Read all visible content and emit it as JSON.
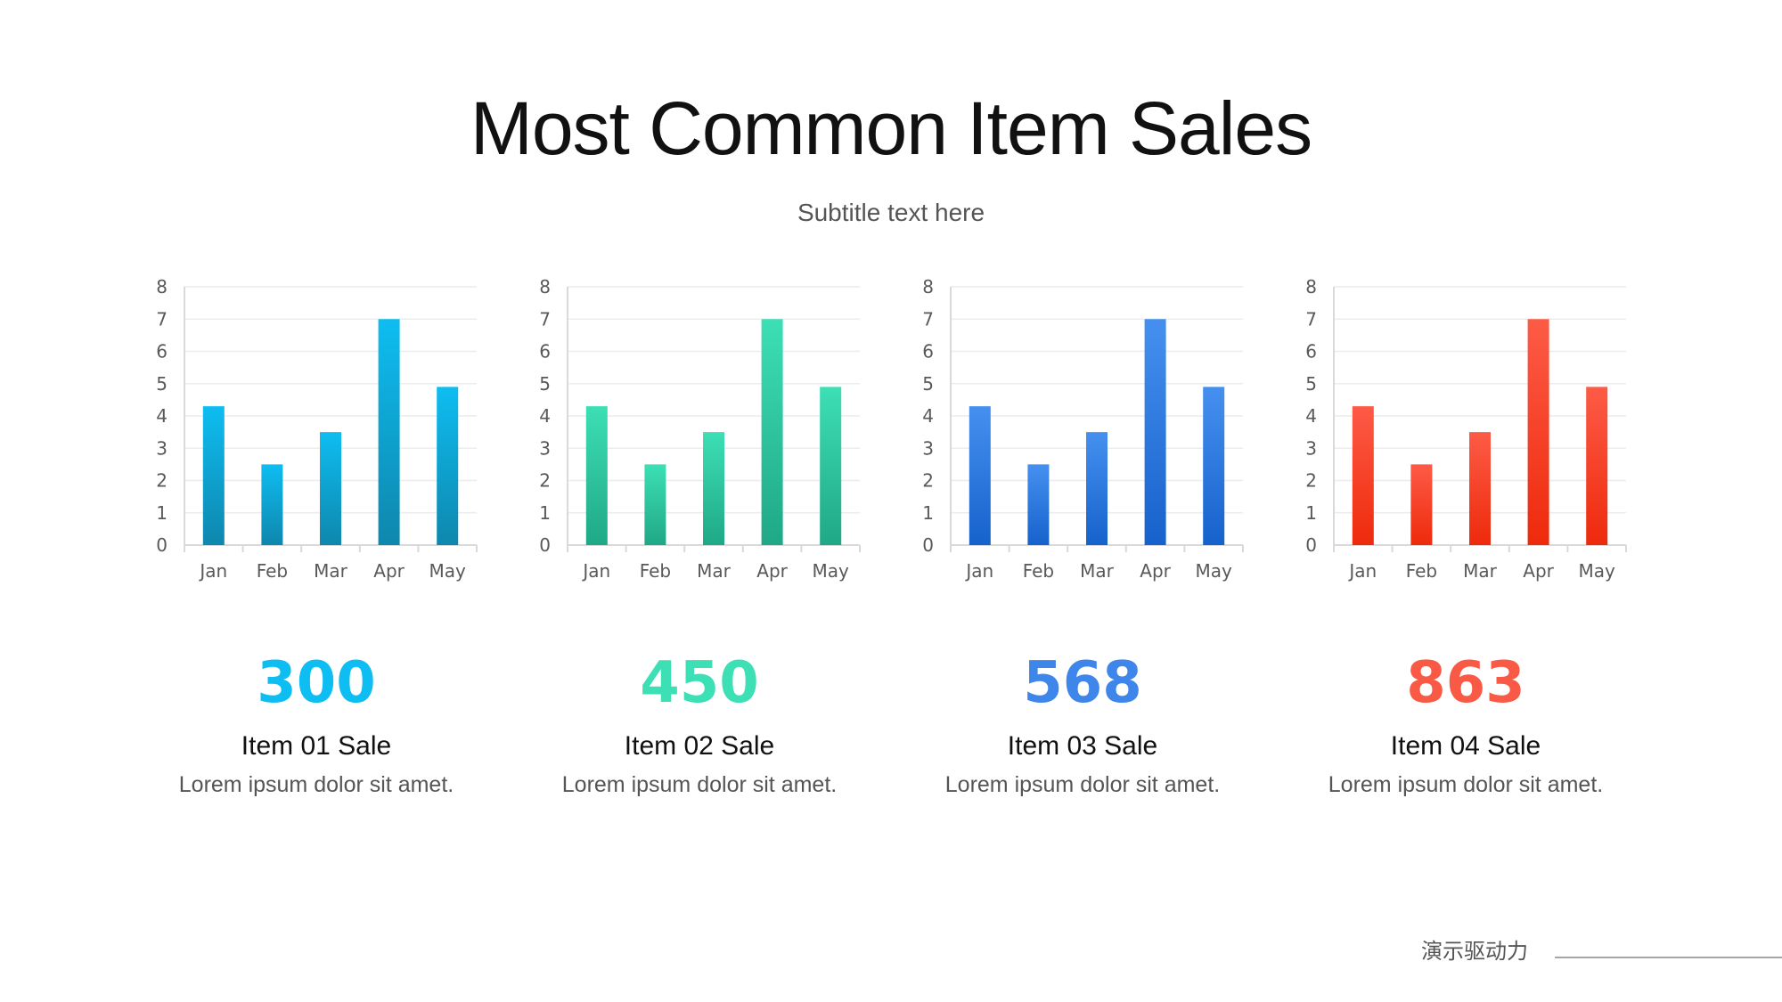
{
  "header": {
    "title": "Most Common Item Sales",
    "subtitle": "Subtitle text here"
  },
  "chart_data": [
    {
      "type": "bar",
      "categories": [
        "Jan",
        "Feb",
        "Mar",
        "Apr",
        "May"
      ],
      "values": [
        4.3,
        2.5,
        3.5,
        7.0,
        4.9
      ],
      "ylim": [
        0,
        8
      ],
      "yticks": [
        "0",
        "1",
        "2",
        "3",
        "4",
        "5",
        "6",
        "7",
        "8"
      ],
      "grid": true,
      "color_top": "#0ebdf1",
      "color_bottom": "#0e87ad"
    },
    {
      "type": "bar",
      "categories": [
        "Jan",
        "Feb",
        "Mar",
        "Apr",
        "May"
      ],
      "values": [
        4.3,
        2.5,
        3.5,
        7.0,
        4.9
      ],
      "ylim": [
        0,
        8
      ],
      "yticks": [
        "0",
        "1",
        "2",
        "3",
        "4",
        "5",
        "6",
        "7",
        "8"
      ],
      "grid": true,
      "color_top": "#3ddfb5",
      "color_bottom": "#20a886"
    },
    {
      "type": "bar",
      "categories": [
        "Jan",
        "Feb",
        "Mar",
        "Apr",
        "May"
      ],
      "values": [
        4.3,
        2.5,
        3.5,
        7.0,
        4.9
      ],
      "ylim": [
        0,
        8
      ],
      "yticks": [
        "0",
        "1",
        "2",
        "3",
        "4",
        "5",
        "6",
        "7",
        "8"
      ],
      "grid": true,
      "color_top": "#4590ef",
      "color_bottom": "#1662cc"
    },
    {
      "type": "bar",
      "categories": [
        "Jan",
        "Feb",
        "Mar",
        "Apr",
        "May"
      ],
      "values": [
        4.3,
        2.5,
        3.5,
        7.0,
        4.9
      ],
      "ylim": [
        0,
        8
      ],
      "yticks": [
        "0",
        "1",
        "2",
        "3",
        "4",
        "5",
        "6",
        "7",
        "8"
      ],
      "grid": true,
      "color_top": "#fd5b46",
      "color_bottom": "#ee2a0c"
    }
  ],
  "stats": [
    {
      "value": "300",
      "label": "Item 01 Sale",
      "description": "Lorem ipsum dolor sit amet.",
      "color": "#0ebdf1"
    },
    {
      "value": "450",
      "label": "Item 02 Sale",
      "description": "Lorem ipsum dolor sit amet.",
      "color": "#3ddfb5"
    },
    {
      "value": "568",
      "label": "Item 03 Sale",
      "description": "Lorem ipsum dolor sit amet.",
      "color": "#3f86ea"
    },
    {
      "value": "863",
      "label": "Item 04 Sale",
      "description": "Lorem ipsum dolor sit amet.",
      "color": "#f85a45"
    }
  ],
  "footer": {
    "brand": "演示驱动力"
  }
}
